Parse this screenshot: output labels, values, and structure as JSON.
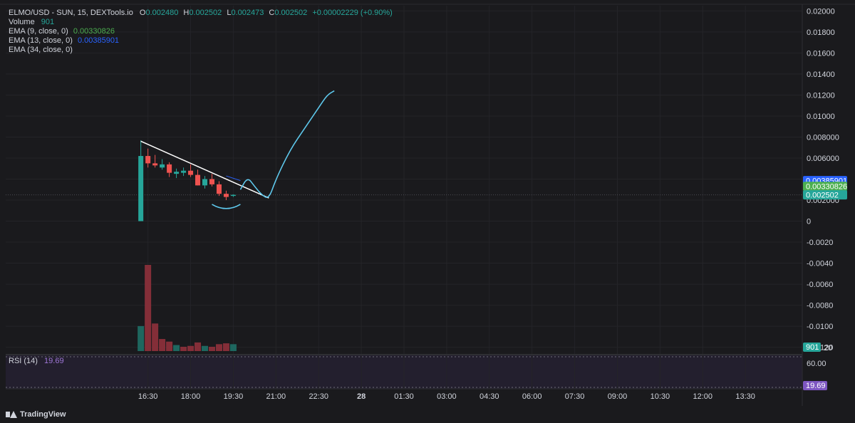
{
  "legend": {
    "symbol_line": "ELMO/USD - SUN, 15, DEXTools.io",
    "o_label": "O",
    "o_value": "0.002480",
    "h_label": "H",
    "h_value": "0.002502",
    "l_label": "L",
    "l_value": "0.002473",
    "c_label": "C",
    "c_value": "0.002502",
    "change": "+0.00002229 (+0.90%)",
    "volume_label": "Volume",
    "volume_value": "901",
    "ema9_label": "EMA (9, close, 0)",
    "ema9_value": "0.00330826",
    "ema13_label": "EMA (13, close, 0)",
    "ema13_value": "0.00385901",
    "ema34_label": "EMA (34, close, 0)"
  },
  "rsi": {
    "label": "RSI (14)",
    "value": "19.69"
  },
  "branding": {
    "name": "TradingView"
  },
  "colors": {
    "background": "#1a1a1d",
    "up": "#26a69a",
    "down": "#ef5350",
    "ema9": "#4caf50",
    "ema13": "#2962ff",
    "rsi": "#7e57c2",
    "drawing_line": "#ffffff",
    "drawing_curve": "#5ec8ec"
  },
  "chart_data": {
    "type": "candlestick",
    "y_axis_labels": [
      "0.02000",
      "0.01800",
      "0.01600",
      "0.01400",
      "0.01200",
      "0.01000",
      "0.008000",
      "0.006000",
      "0.004000",
      "0.002000",
      "0",
      "-0.0020",
      "-0.0040",
      "-0.0060",
      "-0.0080",
      "-0.0100",
      "-0.0120"
    ],
    "y_axis_values": [
      0.02,
      0.018,
      0.016,
      0.014,
      0.012,
      0.01,
      0.008,
      0.006,
      0.004,
      0.002,
      0,
      -0.002,
      -0.004,
      -0.006,
      -0.008,
      -0.01,
      -0.012
    ],
    "ylim": [
      -0.0125,
      0.0205
    ],
    "x_axis_labels": [
      "16:30",
      "18:00",
      "19:30",
      "21:00",
      "22:30",
      "28",
      "01:30",
      "03:00",
      "04:30",
      "06:00",
      "07:30",
      "09:00",
      "10:30",
      "12:00",
      "13:30"
    ],
    "x_axis_hours": [
      16.5,
      18,
      19.5,
      21,
      22.5,
      24,
      25.5,
      27,
      28.5,
      30,
      31.5,
      33,
      34.5,
      36,
      37.5
    ],
    "xlim": [
      11.5,
      39.5
    ],
    "candles": [
      {
        "t": 16.25,
        "o": 0.0,
        "h": 0.0077,
        "l": 0.0,
        "c": 0.0062
      },
      {
        "t": 16.5,
        "o": 0.0062,
        "h": 0.0069,
        "l": 0.0051,
        "c": 0.0055
      },
      {
        "t": 16.75,
        "o": 0.0055,
        "h": 0.0063,
        "l": 0.0051,
        "c": 0.0053
      },
      {
        "t": 17.0,
        "o": 0.0051,
        "h": 0.0059,
        "l": 0.0049,
        "c": 0.0054
      },
      {
        "t": 17.25,
        "o": 0.0054,
        "h": 0.0056,
        "l": 0.0042,
        "c": 0.0046
      },
      {
        "t": 17.5,
        "o": 0.0045,
        "h": 0.005,
        "l": 0.0041,
        "c": 0.0047
      },
      {
        "t": 17.75,
        "o": 0.0046,
        "h": 0.0051,
        "l": 0.0043,
        "c": 0.0048
      },
      {
        "t": 18.0,
        "o": 0.0048,
        "h": 0.0054,
        "l": 0.0042,
        "c": 0.0044
      },
      {
        "t": 18.25,
        "o": 0.0044,
        "h": 0.0049,
        "l": 0.0034,
        "c": 0.0034
      },
      {
        "t": 18.5,
        "o": 0.0034,
        "h": 0.0043,
        "l": 0.0031,
        "c": 0.004
      },
      {
        "t": 18.75,
        "o": 0.004,
        "h": 0.0045,
        "l": 0.0033,
        "c": 0.0035
      },
      {
        "t": 19.0,
        "o": 0.0035,
        "h": 0.0038,
        "l": 0.0024,
        "c": 0.0026
      },
      {
        "t": 19.25,
        "o": 0.0026,
        "h": 0.0029,
        "l": 0.002,
        "c": 0.0023
      },
      {
        "t": 19.5,
        "o": 0.00248,
        "h": 0.00255,
        "l": 0.0023,
        "c": 0.002502
      }
    ],
    "volumes": [
      {
        "t": 16.25,
        "v": 0.29,
        "up": true
      },
      {
        "t": 16.5,
        "v": 1.0,
        "up": false
      },
      {
        "t": 16.75,
        "v": 0.32,
        "up": false
      },
      {
        "t": 17.0,
        "v": 0.14,
        "up": false
      },
      {
        "t": 17.25,
        "v": 0.11,
        "up": false
      },
      {
        "t": 17.5,
        "v": 0.07,
        "up": true
      },
      {
        "t": 17.75,
        "v": 0.05,
        "up": false
      },
      {
        "t": 18.0,
        "v": 0.06,
        "up": false
      },
      {
        "t": 18.25,
        "v": 0.1,
        "up": false
      },
      {
        "t": 18.5,
        "v": 0.06,
        "up": true
      },
      {
        "t": 18.75,
        "v": 0.05,
        "up": false
      },
      {
        "t": 19.0,
        "v": 0.08,
        "up": false
      },
      {
        "t": 19.25,
        "v": 0.09,
        "up": false
      },
      {
        "t": 19.5,
        "v": 0.08,
        "up": true
      }
    ],
    "ema13_points": [
      [
        19.25,
        0.0043
      ],
      [
        19.75,
        0.00386
      ]
    ],
    "trendline": [
      [
        16.25,
        0.0076
      ],
      [
        20.75,
        0.0022
      ]
    ],
    "projection_curve": [
      [
        19.75,
        0.003
      ],
      [
        20.0,
        0.0042
      ],
      [
        20.25,
        0.0033
      ],
      [
        20.5,
        0.0025
      ],
      [
        20.75,
        0.0021
      ],
      [
        21.0,
        0.004
      ],
      [
        21.5,
        0.0068
      ],
      [
        22.0,
        0.0088
      ],
      [
        22.5,
        0.0108
      ],
      [
        22.8,
        0.012
      ],
      [
        23.05,
        0.0124
      ]
    ],
    "bottom_arc": [
      [
        18.75,
        0.0016
      ],
      [
        19.25,
        0.0012
      ],
      [
        19.75,
        0.0016
      ]
    ],
    "price_tags": [
      {
        "label": "0.00385901",
        "value": 0.00385901,
        "color": "#2962ff"
      },
      {
        "label": "0.00330826",
        "value": 0.00330826,
        "color": "#4caf50"
      },
      {
        "label": "0.002502",
        "value": 0.002502,
        "color": "#26a69a"
      }
    ],
    "volume_tag": "901",
    "volume_axis_label": "20",
    "rsi_axis_label": "60.00",
    "rsi_tag": "19.69"
  }
}
